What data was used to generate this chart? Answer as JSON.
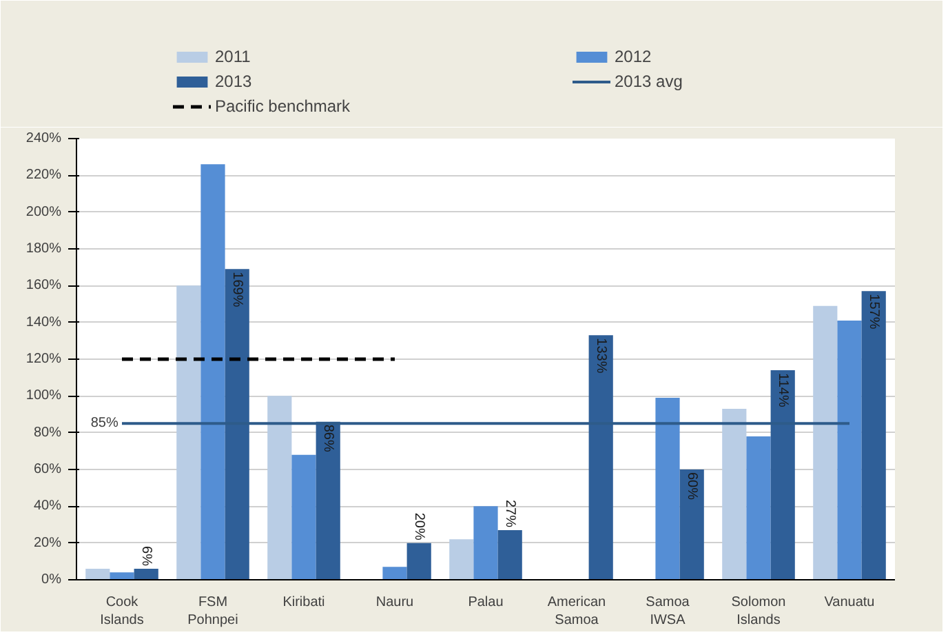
{
  "chart_data": {
    "type": "bar",
    "categories": [
      "Cook Islands",
      "FSM Pohnpei",
      "Kiribati",
      "Nauru",
      "Palau",
      "American Samoa",
      "Samoa IWSA",
      "Solomon Islands",
      "Vanuatu"
    ],
    "series": [
      {
        "name": "2011",
        "color": "#b9cde5",
        "values": [
          6,
          160,
          100,
          null,
          22,
          null,
          null,
          93,
          149
        ]
      },
      {
        "name": "2012",
        "color": "#558ed5",
        "values": [
          4,
          226,
          68,
          7,
          40,
          null,
          99,
          78,
          141
        ]
      },
      {
        "name": "2013",
        "color": "#2f5f98",
        "values": [
          6,
          169,
          86,
          20,
          27,
          133,
          60,
          114,
          157
        ],
        "value_labels": [
          "6%",
          "169%",
          "86%",
          "20%",
          "27%",
          "133%",
          "60%",
          "114%",
          "157%"
        ]
      },
      {
        "name": "2013 avg",
        "type": "line",
        "color": "#2e5b8a",
        "line_style": "solid",
        "values": [
          85,
          85,
          85,
          85,
          85,
          85,
          85,
          85,
          85
        ],
        "value_labels": [
          "85%",
          null,
          null,
          null,
          null,
          null,
          null,
          null,
          null
        ]
      },
      {
        "name": "Pacific benchmark",
        "type": "line",
        "color": "#000000",
        "line_style": "dashed",
        "values": [
          120,
          120,
          120,
          120,
          null,
          null,
          null,
          null,
          null
        ]
      }
    ],
    "ylim": [
      0,
      240
    ],
    "yticks": [
      {
        "value": 0,
        "label": "0%"
      },
      {
        "value": 20,
        "label": "20%"
      },
      {
        "value": 40,
        "label": "40%"
      },
      {
        "value": 60,
        "label": "60%"
      },
      {
        "value": 80,
        "label": "80%"
      },
      {
        "value": 100,
        "label": "100%"
      },
      {
        "value": 120,
        "label": "120%"
      },
      {
        "value": 140,
        "label": "140%"
      },
      {
        "value": 160,
        "label": "160%"
      },
      {
        "value": 180,
        "label": "180%"
      },
      {
        "value": 200,
        "label": "200%"
      },
      {
        "value": 220,
        "label": "220%"
      },
      {
        "value": 240,
        "label": "240%"
      }
    ],
    "grid": "y",
    "legend": "top",
    "marker": "none"
  }
}
